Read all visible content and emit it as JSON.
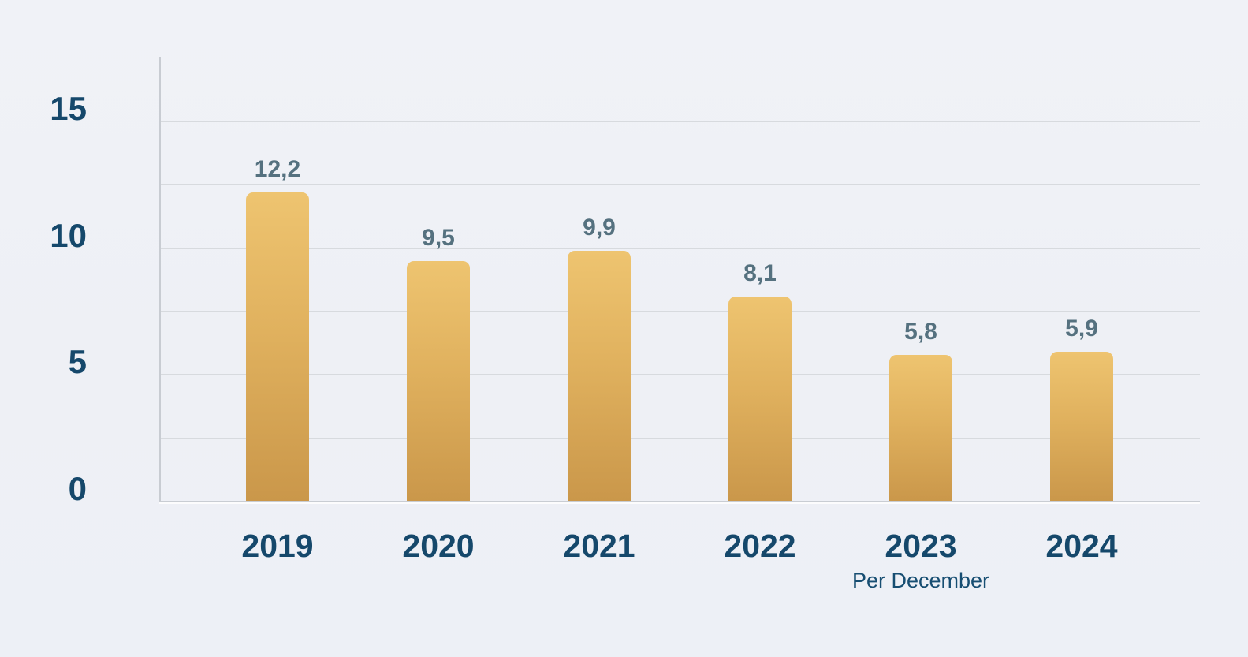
{
  "chart_data": {
    "type": "bar",
    "title": "",
    "xlabel": "",
    "ylabel": "",
    "categories": [
      "2019",
      "2020",
      "2021",
      "2022",
      "2023",
      "2024"
    ],
    "values": [
      12.2,
      9.5,
      9.9,
      8.1,
      5.8,
      5.9
    ],
    "value_labels": [
      "12,2",
      "9,5",
      "9,9",
      "8,1",
      "5,8",
      "5,9"
    ],
    "category_sublabels": [
      "",
      "",
      "",
      "",
      "Per December",
      ""
    ],
    "ylim": [
      0,
      15
    ],
    "ytick_labels": [
      "0",
      "5",
      "10",
      "15"
    ],
    "yticks": [
      0,
      5,
      10,
      15
    ],
    "gridline_interval": 2.5,
    "grid": "horizontal-only",
    "legend": "none",
    "decimal_separator": ","
  },
  "colors": {
    "background": "#eff1f6",
    "bar_gradient_top": "#eec470",
    "bar_gradient_bottom": "#ca974a",
    "gridline": "#d7dade",
    "axis_line": "#c8ccd2",
    "axis_tick_label": "#15486b",
    "value_label": "#55717f",
    "year_label": "#15486b",
    "sublabel": "#174e72"
  }
}
